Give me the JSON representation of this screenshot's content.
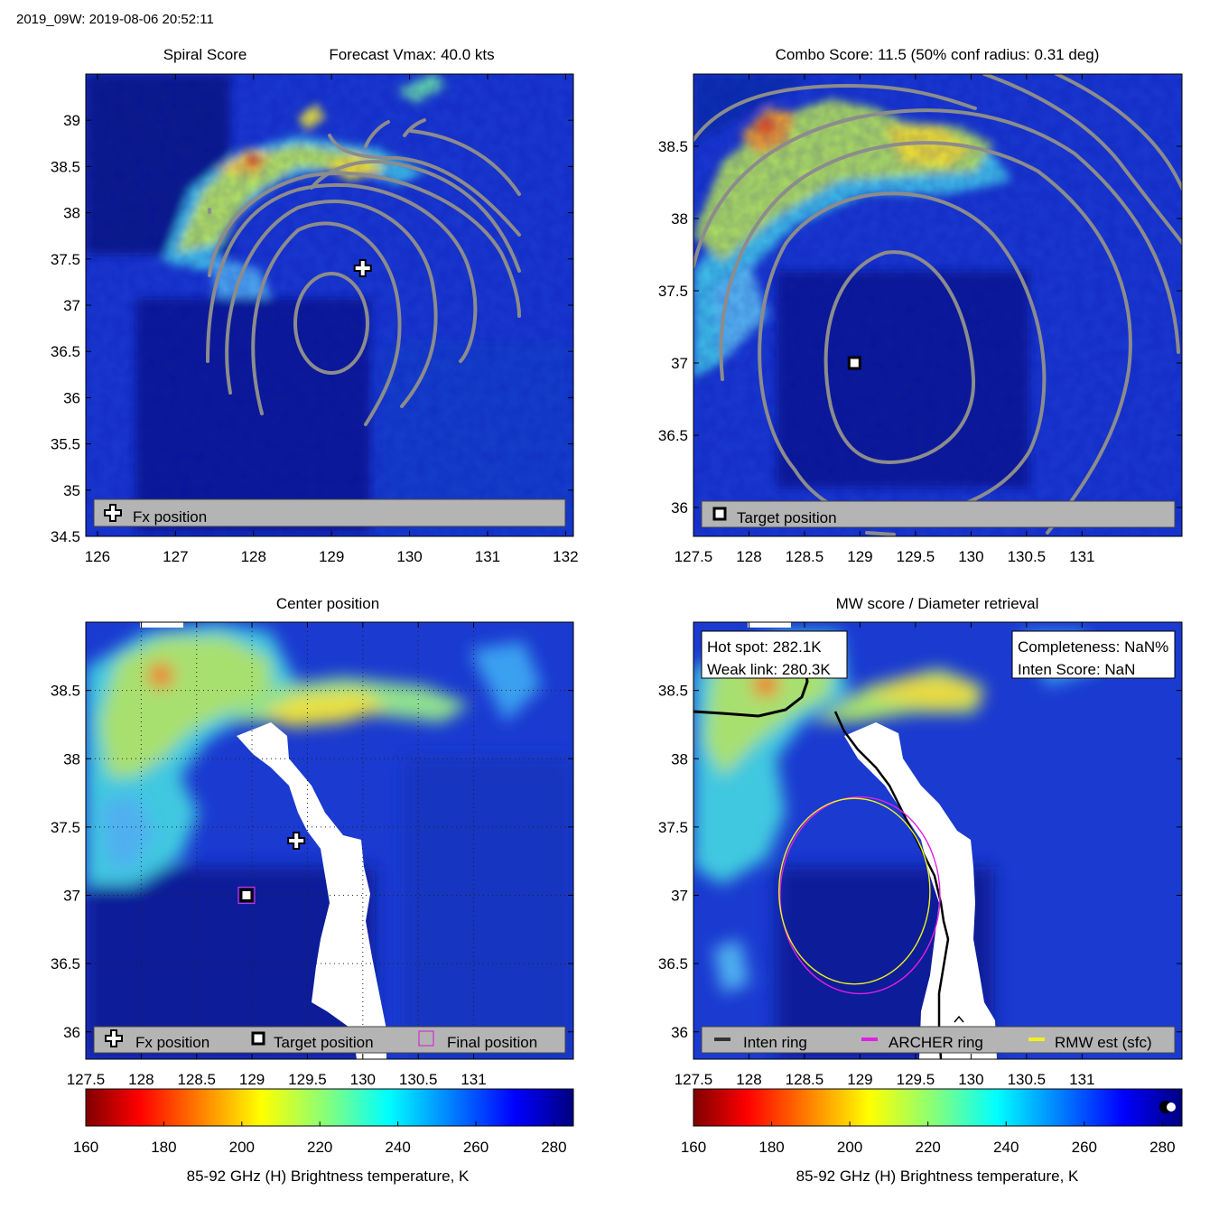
{
  "header": "2019_09W: 2019-08-06 20:52:11",
  "colors": {
    "contour": "#8c8c8c",
    "legend_bg": "#b4b4b4",
    "archer_ring": "#e020e0",
    "rmw_ring": "#f0f020",
    "inten_ring": "#000000",
    "final_marker": "#d030d0",
    "background_field": "#1430c8"
  },
  "chart_data": [
    {
      "id": "spiral",
      "type": "heatmap",
      "title_left": "Spiral Score",
      "title_right": "Forecast Vmax: 40.0 kts",
      "xlim": [
        125.85,
        132.1
      ],
      "ylim": [
        34.5,
        39.5
      ],
      "xticks": [
        126,
        127,
        128,
        129,
        130,
        131,
        132
      ],
      "xtick_labels": [
        "126",
        "127",
        "128",
        "129",
        "130",
        "131",
        "132"
      ],
      "yticks": [
        39,
        38.5,
        38,
        37.5,
        37,
        36.5,
        36,
        35.5,
        35,
        34.5
      ],
      "ytick_labels": [
        "39",
        "38.5",
        "38",
        "37.5",
        "37",
        "36.5",
        "36",
        "35.5",
        "35",
        "34.5"
      ],
      "markers": [
        {
          "kind": "cross",
          "lon": 129.4,
          "lat": 37.4
        }
      ],
      "legend": [
        {
          "kind": "cross",
          "label": "Fx position"
        }
      ]
    },
    {
      "id": "combo",
      "type": "heatmap",
      "title": "Combo Score: 11.5  (50% conf radius: 0.31 deg)",
      "xlim": [
        127.5,
        131.9
      ],
      "ylim": [
        35.8,
        39.0
      ],
      "xticks": [
        127.5,
        128,
        128.5,
        129,
        129.5,
        130,
        130.5,
        131
      ],
      "xtick_labels": [
        "127.5",
        "128",
        "128.5",
        "129",
        "129.5",
        "130",
        "130.5",
        "131"
      ],
      "yticks": [
        38.5,
        38,
        37.5,
        37,
        36.5,
        36
      ],
      "ytick_labels": [
        "38.5",
        "38",
        "37.5",
        "37",
        "36.5",
        "36"
      ],
      "markers": [
        {
          "kind": "square",
          "lon": 128.95,
          "lat": 37.0
        }
      ],
      "legend": [
        {
          "kind": "square",
          "label": "Target position"
        }
      ]
    },
    {
      "id": "center",
      "type": "heatmap",
      "title": "Center position",
      "xlim": [
        127.5,
        131.9
      ],
      "ylim": [
        35.8,
        39.0
      ],
      "xticks": [
        127.5,
        128,
        128.5,
        129,
        129.5,
        130,
        130.5,
        131
      ],
      "xtick_labels": [
        "127.5",
        "128",
        "128.5",
        "129",
        "129.5",
        "130",
        "130.5",
        "131"
      ],
      "yticks": [
        38.5,
        38,
        37.5,
        37,
        36.5,
        36
      ],
      "ytick_labels": [
        "38.5",
        "38",
        "37.5",
        "37",
        "36.5",
        "36"
      ],
      "markers": [
        {
          "kind": "cross",
          "lon": 129.4,
          "lat": 37.4
        },
        {
          "kind": "square",
          "lon": 128.95,
          "lat": 37.0
        },
        {
          "kind": "magenta-square",
          "lon": 128.95,
          "lat": 37.0
        }
      ],
      "legend": [
        {
          "kind": "cross",
          "label": "Fx position"
        },
        {
          "kind": "square",
          "label": "Target position"
        },
        {
          "kind": "magenta-square",
          "label": "Final position"
        }
      ],
      "colorbar": {
        "ticks": [
          160,
          180,
          200,
          220,
          240,
          260,
          280
        ],
        "tick_labels": [
          "160",
          "180",
          "200",
          "220",
          "240",
          "260",
          "280"
        ],
        "min": 160,
        "max": 285,
        "label": "85-92 GHz (H) Brightness temperature, K"
      }
    },
    {
      "id": "mw",
      "type": "heatmap",
      "title": "MW score / Diameter retrieval",
      "xlim": [
        127.5,
        131.9
      ],
      "ylim": [
        35.8,
        39.0
      ],
      "xticks": [
        127.5,
        128,
        128.5,
        129,
        129.5,
        130,
        130.5,
        131
      ],
      "xtick_labels": [
        "127.5",
        "128",
        "128.5",
        "129",
        "129.5",
        "130",
        "130.5",
        "131"
      ],
      "yticks": [
        38.5,
        38,
        37.5,
        37,
        36.5,
        36
      ],
      "ytick_labels": [
        "38.5",
        "38",
        "37.5",
        "37",
        "36.5",
        "36"
      ],
      "info_left": [
        "Hot spot: 282.1K",
        "Weak link: 280.3K"
      ],
      "info_right": [
        "Completeness: NaN%",
        "Inten Score: NaN"
      ],
      "rings": [
        {
          "name": "ARCHER ring",
          "lon": 129.0,
          "lat": 37.0,
          "radius_deg": 0.72
        },
        {
          "name": "RMW est (sfc)",
          "lon": 128.95,
          "lat": 37.03,
          "radius_deg": 0.68
        }
      ],
      "legend": [
        {
          "kind": "line-dark",
          "label": "Inten ring"
        },
        {
          "kind": "line-magenta",
          "label": "ARCHER ring"
        },
        {
          "kind": "line-yellow",
          "label": "RMW est (sfc)"
        }
      ],
      "colorbar": {
        "ticks": [
          160,
          180,
          200,
          220,
          240,
          260,
          280
        ],
        "tick_labels": [
          "160",
          "180",
          "200",
          "220",
          "240",
          "260",
          "280"
        ],
        "min": 160,
        "max": 285,
        "label": "85-92 GHz (H) Brightness temperature, K"
      }
    }
  ]
}
